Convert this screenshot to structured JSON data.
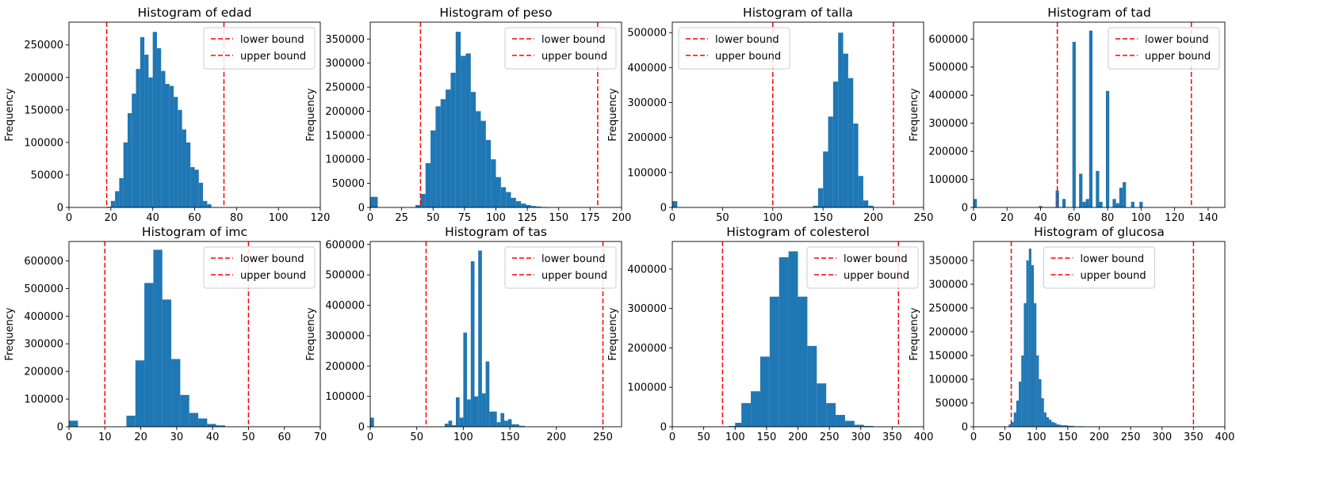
{
  "figure": {
    "bar_color": "#1f77b4",
    "bound_color": "#ff0000",
    "ylabel": "Frequency",
    "legend": [
      "lower bound",
      "upper bound"
    ]
  },
  "chart_data": [
    {
      "type": "bar",
      "title": "Histogram of edad",
      "ylabel": "Frequency",
      "xlim": [
        0,
        120
      ],
      "ylim": [
        0,
        285000
      ],
      "xticks": [
        0,
        20,
        40,
        60,
        80,
        100,
        120
      ],
      "yticks": [
        0,
        50000,
        100000,
        150000,
        200000,
        250000
      ],
      "bounds": {
        "lower": 18,
        "upper": 74
      },
      "legend_position": "upper right",
      "bins": [
        [
          18,
          20,
          1000
        ],
        [
          20,
          22,
          10000
        ],
        [
          22,
          24,
          25000
        ],
        [
          24,
          26,
          45000
        ],
        [
          26,
          28,
          100000
        ],
        [
          28,
          30,
          145000
        ],
        [
          30,
          32,
          175000
        ],
        [
          32,
          34,
          213000
        ],
        [
          34,
          36,
          262000
        ],
        [
          36,
          38,
          235000
        ],
        [
          38,
          40,
          200000
        ],
        [
          40,
          42,
          270000
        ],
        [
          42,
          44,
          245000
        ],
        [
          44,
          46,
          210000
        ],
        [
          46,
          48,
          190000
        ],
        [
          48,
          50,
          187000
        ],
        [
          50,
          52,
          170000
        ],
        [
          52,
          54,
          150000
        ],
        [
          54,
          56,
          120000
        ],
        [
          56,
          58,
          100000
        ],
        [
          58,
          60,
          62000
        ],
        [
          60,
          62,
          58000
        ],
        [
          62,
          64,
          38000
        ],
        [
          64,
          66,
          10000
        ],
        [
          66,
          68,
          5000
        ]
      ]
    },
    {
      "type": "bar",
      "title": "Histogram of peso",
      "ylabel": "Frequency",
      "xlim": [
        0,
        200
      ],
      "ylim": [
        0,
        385000
      ],
      "xticks": [
        0,
        25,
        50,
        75,
        100,
        125,
        150,
        175,
        200
      ],
      "yticks": [
        0,
        50000,
        100000,
        150000,
        200000,
        250000,
        300000,
        350000
      ],
      "bounds": {
        "lower": 40,
        "upper": 181
      },
      "legend_position": "upper right",
      "bins": [
        [
          0,
          6,
          22000
        ],
        [
          36,
          40,
          5000
        ],
        [
          40,
          44,
          28000
        ],
        [
          44,
          48,
          92000
        ],
        [
          48,
          52,
          160000
        ],
        [
          52,
          56,
          210000
        ],
        [
          56,
          60,
          225000
        ],
        [
          60,
          64,
          245000
        ],
        [
          64,
          68,
          280000
        ],
        [
          68,
          72,
          365000
        ],
        [
          72,
          76,
          315000
        ],
        [
          76,
          80,
          320000
        ],
        [
          80,
          84,
          240000
        ],
        [
          84,
          88,
          200000
        ],
        [
          88,
          92,
          180000
        ],
        [
          92,
          96,
          140000
        ],
        [
          96,
          100,
          100000
        ],
        [
          100,
          104,
          63000
        ],
        [
          104,
          108,
          42000
        ],
        [
          108,
          112,
          32000
        ],
        [
          112,
          116,
          20000
        ],
        [
          116,
          120,
          13000
        ],
        [
          120,
          124,
          8000
        ],
        [
          124,
          128,
          5000
        ],
        [
          128,
          132,
          3000
        ],
        [
          132,
          136,
          2000
        ],
        [
          136,
          140,
          1000
        ],
        [
          140,
          144,
          500
        ]
      ]
    },
    {
      "type": "bar",
      "title": "Histogram of talla",
      "ylabel": "Frequency",
      "xlim": [
        0,
        250
      ],
      "ylim": [
        0,
        530000
      ],
      "xticks": [
        0,
        50,
        100,
        150,
        200,
        250
      ],
      "yticks": [
        0,
        100000,
        200000,
        300000,
        400000,
        500000
      ],
      "bounds": {
        "lower": 100,
        "upper": 220
      },
      "legend_position": "upper left",
      "bins": [
        [
          0,
          5,
          18000
        ],
        [
          140,
          145,
          5000
        ],
        [
          145,
          150,
          55000
        ],
        [
          150,
          155,
          160000
        ],
        [
          155,
          160,
          260000
        ],
        [
          160,
          165,
          360000
        ],
        [
          165,
          170,
          500000
        ],
        [
          170,
          175,
          440000
        ],
        [
          175,
          180,
          370000
        ],
        [
          180,
          185,
          240000
        ],
        [
          185,
          190,
          90000
        ],
        [
          190,
          195,
          20000
        ],
        [
          195,
          200,
          5000
        ]
      ]
    },
    {
      "type": "bar",
      "title": "Histogram of tad",
      "ylabel": "Frequency",
      "xlim": [
        0,
        150
      ],
      "ylim": [
        0,
        660000
      ],
      "xticks": [
        0,
        20,
        40,
        60,
        80,
        100,
        120,
        140
      ],
      "yticks": [
        0,
        100000,
        200000,
        300000,
        400000,
        500000,
        600000
      ],
      "bounds": {
        "lower": 50,
        "upper": 130
      },
      "legend_position": "upper right",
      "bins": [
        [
          0,
          2,
          30000
        ],
        [
          39,
          41,
          5000
        ],
        [
          49,
          51,
          60000
        ],
        [
          53,
          55,
          30000
        ],
        [
          59,
          61,
          590000
        ],
        [
          63,
          65,
          120000
        ],
        [
          65,
          67,
          20000
        ],
        [
          67,
          69,
          30000
        ],
        [
          69,
          71,
          630000
        ],
        [
          73,
          75,
          130000
        ],
        [
          75,
          77,
          20000
        ],
        [
          79,
          81,
          415000
        ],
        [
          83,
          85,
          30000
        ],
        [
          85,
          87,
          15000
        ],
        [
          87,
          89,
          70000
        ],
        [
          89,
          91,
          90000
        ],
        [
          94,
          96,
          20000
        ],
        [
          99,
          101,
          20000
        ]
      ]
    },
    {
      "type": "bar",
      "title": "Histogram of imc",
      "ylabel": "Frequency",
      "xlim": [
        0,
        70
      ],
      "ylim": [
        0,
        670000
      ],
      "xticks": [
        0,
        10,
        20,
        30,
        40,
        50,
        60,
        70
      ],
      "yticks": [
        0,
        100000,
        200000,
        300000,
        400000,
        500000,
        600000
      ],
      "bounds": {
        "lower": 10,
        "upper": 50
      },
      "legend_position": "upper right",
      "bins": [
        [
          0,
          2.5,
          22000
        ],
        [
          16,
          18.5,
          40000
        ],
        [
          18.5,
          21,
          240000
        ],
        [
          21,
          23.5,
          520000
        ],
        [
          23.5,
          26,
          640000
        ],
        [
          26,
          28.5,
          460000
        ],
        [
          28.5,
          31,
          245000
        ],
        [
          31,
          33.5,
          115000
        ],
        [
          33.5,
          36,
          50000
        ],
        [
          36,
          38.5,
          30000
        ],
        [
          38.5,
          41,
          10000
        ],
        [
          41,
          43.5,
          5000
        ]
      ]
    },
    {
      "type": "bar",
      "title": "Histogram of tas",
      "ylabel": "Frequency",
      "xlim": [
        0,
        270
      ],
      "ylim": [
        0,
        610000
      ],
      "xticks": [
        0,
        50,
        100,
        150,
        200,
        250
      ],
      "yticks": [
        0,
        100000,
        200000,
        300000,
        400000,
        500000,
        600000
      ],
      "bounds": {
        "lower": 60,
        "upper": 250
      },
      "legend_position": "upper right",
      "bins": [
        [
          0,
          4,
          30000
        ],
        [
          80,
          84,
          10000
        ],
        [
          84,
          88,
          20000
        ],
        [
          88,
          92,
          5000
        ],
        [
          92,
          96,
          97000
        ],
        [
          96,
          100,
          30000
        ],
        [
          100,
          104,
          310000
        ],
        [
          104,
          108,
          90000
        ],
        [
          108,
          112,
          545000
        ],
        [
          112,
          116,
          100000
        ],
        [
          116,
          120,
          580000
        ],
        [
          120,
          124,
          110000
        ],
        [
          124,
          128,
          215000
        ],
        [
          128,
          132,
          50000
        ],
        [
          132,
          136,
          50000
        ],
        [
          136,
          140,
          15000
        ],
        [
          140,
          144,
          45000
        ],
        [
          144,
          148,
          20000
        ],
        [
          148,
          152,
          25000
        ],
        [
          152,
          156,
          8000
        ],
        [
          156,
          160,
          8000
        ],
        [
          160,
          166,
          3000
        ]
      ]
    },
    {
      "type": "bar",
      "title": "Histogram of colesterol",
      "ylabel": "Frequency",
      "xlim": [
        0,
        400
      ],
      "ylim": [
        0,
        470000
      ],
      "xticks": [
        0,
        50,
        100,
        150,
        200,
        250,
        300,
        350,
        400
      ],
      "yticks": [
        0,
        100000,
        200000,
        300000,
        400000
      ],
      "bounds": {
        "lower": 80,
        "upper": 360
      },
      "legend_position": "upper right",
      "bins": [
        [
          90,
          100,
          2000
        ],
        [
          100,
          110,
          10000
        ],
        [
          110,
          125,
          60000
        ],
        [
          125,
          140,
          90000
        ],
        [
          140,
          155,
          178000
        ],
        [
          155,
          170,
          330000
        ],
        [
          170,
          185,
          430000
        ],
        [
          185,
          200,
          445000
        ],
        [
          200,
          215,
          330000
        ],
        [
          215,
          230,
          205000
        ],
        [
          230,
          245,
          110000
        ],
        [
          245,
          260,
          60000
        ],
        [
          260,
          275,
          30000
        ],
        [
          275,
          290,
          15000
        ],
        [
          290,
          305,
          5000
        ],
        [
          305,
          320,
          2000
        ]
      ]
    },
    {
      "type": "bar",
      "title": "Histogram of glucosa",
      "ylabel": "Frequency",
      "xlim": [
        0,
        400
      ],
      "ylim": [
        0,
        390000
      ],
      "xticks": [
        0,
        50,
        100,
        150,
        200,
        250,
        300,
        350,
        400
      ],
      "yticks": [
        0,
        50000,
        100000,
        150000,
        200000,
        250000,
        300000,
        350000
      ],
      "bounds": {
        "lower": 60,
        "upper": 350
      },
      "legend_position": "upper center",
      "bins": [
        [
          56,
          60,
          5000
        ],
        [
          60,
          64,
          10000
        ],
        [
          64,
          68,
          30000
        ],
        [
          68,
          72,
          55000
        ],
        [
          72,
          76,
          95000
        ],
        [
          76,
          80,
          150000
        ],
        [
          80,
          84,
          260000
        ],
        [
          84,
          88,
          350000
        ],
        [
          88,
          92,
          375000
        ],
        [
          92,
          96,
          340000
        ],
        [
          96,
          100,
          260000
        ],
        [
          100,
          104,
          150000
        ],
        [
          104,
          108,
          100000
        ],
        [
          108,
          112,
          60000
        ],
        [
          112,
          116,
          30000
        ],
        [
          116,
          120,
          20000
        ],
        [
          120,
          124,
          15000
        ],
        [
          124,
          128,
          10000
        ],
        [
          128,
          132,
          8000
        ],
        [
          132,
          136,
          5000
        ],
        [
          136,
          140,
          4000
        ],
        [
          140,
          150,
          3000
        ],
        [
          150,
          160,
          2000
        ],
        [
          160,
          175,
          1000
        ]
      ]
    }
  ]
}
